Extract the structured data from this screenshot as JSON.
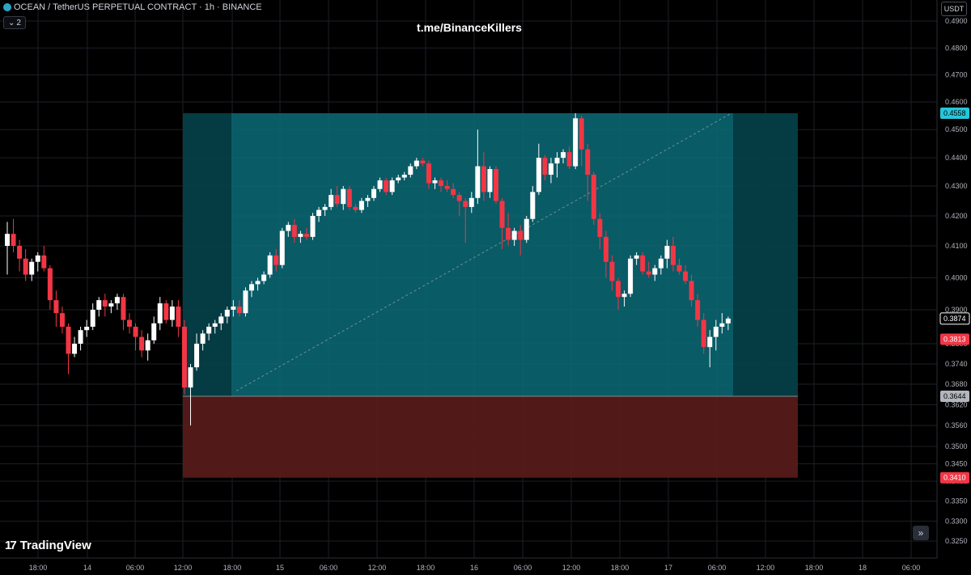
{
  "header": {
    "symbol_title": "OCEAN / TetherUS PERPETUAL CONTRACT · 1h · BINANCE",
    "indicator_count": "2"
  },
  "watermark": "t.me/BinanceKillers",
  "currency": "USDT",
  "brand": "TradingView",
  "scroll_button_glyph": "»",
  "colors": {
    "background": "#000000",
    "bull": "#ffffff",
    "bear": "#f23645",
    "profit_zone": "#0a6b78",
    "loss_zone": "#5a1c1a",
    "price_label": "#26c6da",
    "stop_label": "#f23645",
    "grid": "#1c1f26"
  },
  "icons": {
    "symbol_logo": "ocean-logo-icon",
    "indicators_toggle": "chevron-down-icon",
    "scroll_right": "double-chevron-right-icon"
  },
  "chart_data": {
    "type": "candlestick",
    "price_axis": {
      "ticks": [
        "0.4900",
        "0.4800",
        "0.4700",
        "0.4600",
        "0.4500",
        "0.4400",
        "0.4300",
        "0.4200",
        "0.4100",
        "0.4000",
        "0.3900",
        "0.3800",
        "0.3740",
        "0.3680",
        "0.3620",
        "0.3560",
        "0.3500",
        "0.3450",
        "0.3400",
        "0.3350",
        "0.3300",
        "0.3250"
      ],
      "ylim": [
        0.3225,
        0.495
      ]
    },
    "time_axis": {
      "ticks": [
        "18:00",
        "14",
        "06:00",
        "12:00",
        "18:00",
        "15",
        "06:00",
        "12:00",
        "18:00",
        "16",
        "06:00",
        "12:00",
        "18:00",
        "17",
        "06:00",
        "12:00",
        "18:00",
        "18",
        "06:00"
      ]
    },
    "price_labels": [
      {
        "text": "0.4558",
        "kind": "target"
      },
      {
        "text": "0.3874",
        "kind": "last"
      },
      {
        "text": "0.3813",
        "kind": "current"
      },
      {
        "text": "0.3644",
        "kind": "entry"
      },
      {
        "text": "0.3410",
        "kind": "stop"
      }
    ],
    "position": {
      "type": "long",
      "entry": 0.3644,
      "target": 0.4558,
      "stop": 0.341
    },
    "candles": [
      [
        0.41,
        0.418,
        0.401,
        0.414
      ],
      [
        0.414,
        0.419,
        0.408,
        0.41
      ],
      [
        0.41,
        0.412,
        0.402,
        0.406
      ],
      [
        0.406,
        0.409,
        0.399,
        0.401
      ],
      [
        0.401,
        0.406,
        0.399,
        0.405
      ],
      [
        0.405,
        0.408,
        0.402,
        0.407
      ],
      [
        0.407,
        0.41,
        0.402,
        0.403
      ],
      [
        0.403,
        0.404,
        0.39,
        0.393
      ],
      [
        0.393,
        0.396,
        0.385,
        0.389
      ],
      [
        0.389,
        0.391,
        0.383,
        0.385
      ],
      [
        0.385,
        0.386,
        0.371,
        0.377
      ],
      [
        0.377,
        0.382,
        0.376,
        0.38
      ],
      [
        0.38,
        0.385,
        0.378,
        0.384
      ],
      [
        0.384,
        0.387,
        0.382,
        0.385
      ],
      [
        0.385,
        0.392,
        0.384,
        0.39
      ],
      [
        0.39,
        0.394,
        0.388,
        0.393
      ],
      [
        0.393,
        0.395,
        0.388,
        0.391
      ],
      [
        0.391,
        0.393,
        0.389,
        0.392
      ],
      [
        0.392,
        0.395,
        0.39,
        0.394
      ],
      [
        0.394,
        0.395,
        0.384,
        0.387
      ],
      [
        0.387,
        0.389,
        0.383,
        0.385
      ],
      [
        0.385,
        0.386,
        0.378,
        0.382
      ],
      [
        0.382,
        0.384,
        0.376,
        0.378
      ],
      [
        0.378,
        0.383,
        0.375,
        0.381
      ],
      [
        0.381,
        0.388,
        0.38,
        0.386
      ],
      [
        0.386,
        0.394,
        0.384,
        0.392
      ],
      [
        0.392,
        0.393,
        0.386,
        0.387
      ],
      [
        0.387,
        0.393,
        0.385,
        0.391
      ],
      [
        0.391,
        0.393,
        0.382,
        0.385
      ],
      [
        0.385,
        0.387,
        0.365,
        0.367
      ],
      [
        0.367,
        0.374,
        0.356,
        0.373
      ],
      [
        0.373,
        0.383,
        0.372,
        0.38
      ],
      [
        0.38,
        0.384,
        0.378,
        0.383
      ],
      [
        0.383,
        0.386,
        0.381,
        0.385
      ],
      [
        0.385,
        0.387,
        0.383,
        0.386
      ],
      [
        0.386,
        0.389,
        0.384,
        0.388
      ],
      [
        0.388,
        0.391,
        0.386,
        0.39
      ],
      [
        0.39,
        0.393,
        0.388,
        0.391
      ],
      [
        0.391,
        0.393,
        0.388,
        0.389
      ],
      [
        0.389,
        0.397,
        0.388,
        0.396
      ],
      [
        0.396,
        0.399,
        0.394,
        0.398
      ],
      [
        0.398,
        0.4,
        0.396,
        0.399
      ],
      [
        0.399,
        0.402,
        0.398,
        0.401
      ],
      [
        0.401,
        0.408,
        0.4,
        0.407
      ],
      [
        0.407,
        0.409,
        0.402,
        0.404
      ],
      [
        0.404,
        0.416,
        0.403,
        0.415
      ],
      [
        0.415,
        0.418,
        0.413,
        0.417
      ],
      [
        0.417,
        0.419,
        0.411,
        0.413
      ],
      [
        0.413,
        0.415,
        0.411,
        0.414
      ],
      [
        0.414,
        0.416,
        0.412,
        0.413
      ],
      [
        0.413,
        0.421,
        0.412,
        0.42
      ],
      [
        0.42,
        0.423,
        0.418,
        0.422
      ],
      [
        0.422,
        0.424,
        0.42,
        0.423
      ],
      [
        0.423,
        0.429,
        0.422,
        0.427
      ],
      [
        0.427,
        0.43,
        0.423,
        0.424
      ],
      [
        0.424,
        0.43,
        0.422,
        0.429
      ],
      [
        0.429,
        0.43,
        0.422,
        0.423
      ],
      [
        0.423,
        0.424,
        0.421,
        0.422
      ],
      [
        0.422,
        0.426,
        0.421,
        0.425
      ],
      [
        0.425,
        0.427,
        0.423,
        0.426
      ],
      [
        0.426,
        0.43,
        0.425,
        0.429
      ],
      [
        0.429,
        0.433,
        0.428,
        0.432
      ],
      [
        0.432,
        0.433,
        0.427,
        0.428
      ],
      [
        0.428,
        0.433,
        0.427,
        0.432
      ],
      [
        0.432,
        0.434,
        0.431,
        0.433
      ],
      [
        0.433,
        0.435,
        0.432,
        0.434
      ],
      [
        0.434,
        0.438,
        0.433,
        0.437
      ],
      [
        0.437,
        0.44,
        0.436,
        0.439
      ],
      [
        0.439,
        0.44,
        0.437,
        0.438
      ],
      [
        0.438,
        0.439,
        0.429,
        0.431
      ],
      [
        0.431,
        0.433,
        0.429,
        0.432
      ],
      [
        0.432,
        0.433,
        0.428,
        0.43
      ],
      [
        0.43,
        0.432,
        0.428,
        0.429
      ],
      [
        0.429,
        0.431,
        0.426,
        0.427
      ],
      [
        0.427,
        0.428,
        0.42,
        0.425
      ],
      [
        0.425,
        0.426,
        0.411,
        0.423
      ],
      [
        0.423,
        0.428,
        0.421,
        0.426
      ],
      [
        0.426,
        0.45,
        0.424,
        0.437
      ],
      [
        0.437,
        0.442,
        0.425,
        0.428
      ],
      [
        0.428,
        0.437,
        0.426,
        0.436
      ],
      [
        0.436,
        0.437,
        0.424,
        0.425
      ],
      [
        0.425,
        0.426,
        0.409,
        0.416
      ],
      [
        0.416,
        0.421,
        0.41,
        0.412
      ],
      [
        0.412,
        0.416,
        0.41,
        0.415
      ],
      [
        0.415,
        0.417,
        0.407,
        0.412
      ],
      [
        0.412,
        0.42,
        0.411,
        0.419
      ],
      [
        0.419,
        0.43,
        0.418,
        0.428
      ],
      [
        0.428,
        0.445,
        0.427,
        0.44
      ],
      [
        0.44,
        0.441,
        0.432,
        0.434
      ],
      [
        0.434,
        0.44,
        0.431,
        0.438
      ],
      [
        0.438,
        0.442,
        0.433,
        0.44
      ],
      [
        0.44,
        0.443,
        0.438,
        0.442
      ],
      [
        0.442,
        0.444,
        0.436,
        0.437
      ],
      [
        0.437,
        0.4558,
        0.436,
        0.454
      ],
      [
        0.454,
        0.455,
        0.437,
        0.443
      ],
      [
        0.443,
        0.445,
        0.425,
        0.434
      ],
      [
        0.434,
        0.435,
        0.417,
        0.419
      ],
      [
        0.419,
        0.421,
        0.409,
        0.413
      ],
      [
        0.413,
        0.415,
        0.4,
        0.405
      ],
      [
        0.405,
        0.407,
        0.396,
        0.399
      ],
      [
        0.399,
        0.4,
        0.39,
        0.394
      ],
      [
        0.394,
        0.396,
        0.391,
        0.395
      ],
      [
        0.395,
        0.407,
        0.394,
        0.406
      ],
      [
        0.406,
        0.408,
        0.404,
        0.407
      ],
      [
        0.407,
        0.408,
        0.401,
        0.402
      ],
      [
        0.402,
        0.405,
        0.4,
        0.401
      ],
      [
        0.401,
        0.404,
        0.399,
        0.403
      ],
      [
        0.403,
        0.407,
        0.401,
        0.406
      ],
      [
        0.406,
        0.412,
        0.403,
        0.41
      ],
      [
        0.41,
        0.413,
        0.402,
        0.404
      ],
      [
        0.404,
        0.406,
        0.401,
        0.402
      ],
      [
        0.402,
        0.404,
        0.398,
        0.399
      ],
      [
        0.399,
        0.401,
        0.391,
        0.393
      ],
      [
        0.393,
        0.395,
        0.385,
        0.387
      ],
      [
        0.387,
        0.389,
        0.377,
        0.379
      ],
      [
        0.379,
        0.384,
        0.373,
        0.382
      ],
      [
        0.382,
        0.387,
        0.378,
        0.385
      ],
      [
        0.385,
        0.389,
        0.383,
        0.386
      ],
      [
        0.386,
        0.388,
        0.384,
        0.3874
      ]
    ]
  }
}
